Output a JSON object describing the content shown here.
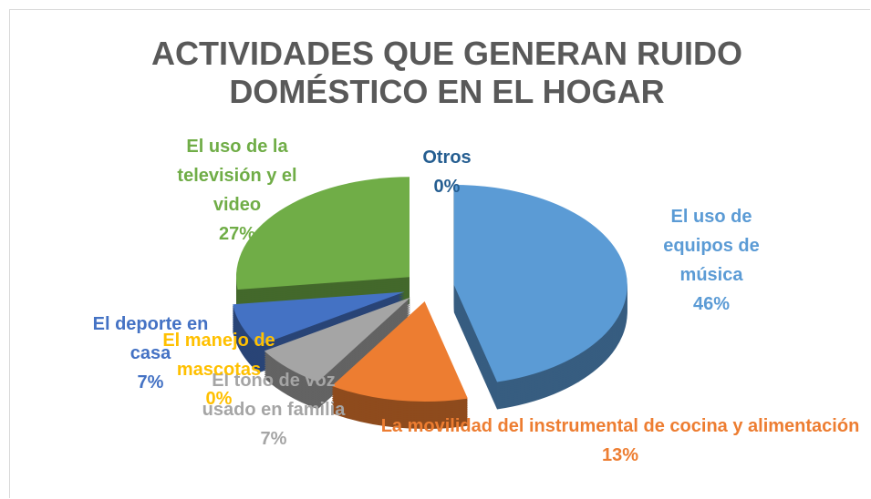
{
  "chart_data": {
    "type": "pie",
    "title": "ACTIVIDADES QUE GENERAN RUIDO DOMÉSTICO EN EL HOGAR",
    "categories": [
      "El uso de equipos de música",
      "La movilidad del instrumental de cocina y alimentación",
      "El tono de voz usado en familia",
      "El manejo de mascotas",
      "El deporte en casa",
      "El uso de la televisión y el video",
      "Otros"
    ],
    "values": [
      46,
      13,
      7,
      0,
      7,
      27,
      0
    ],
    "value_labels": [
      "46%",
      "13%",
      "7%",
      "0%",
      "7%",
      "27%",
      "0%"
    ],
    "colors": [
      "#5b9bd5",
      "#ed7d31",
      "#a5a5a5",
      "#ffc000",
      "#4472c4",
      "#70ad47",
      "#264478"
    ]
  }
}
